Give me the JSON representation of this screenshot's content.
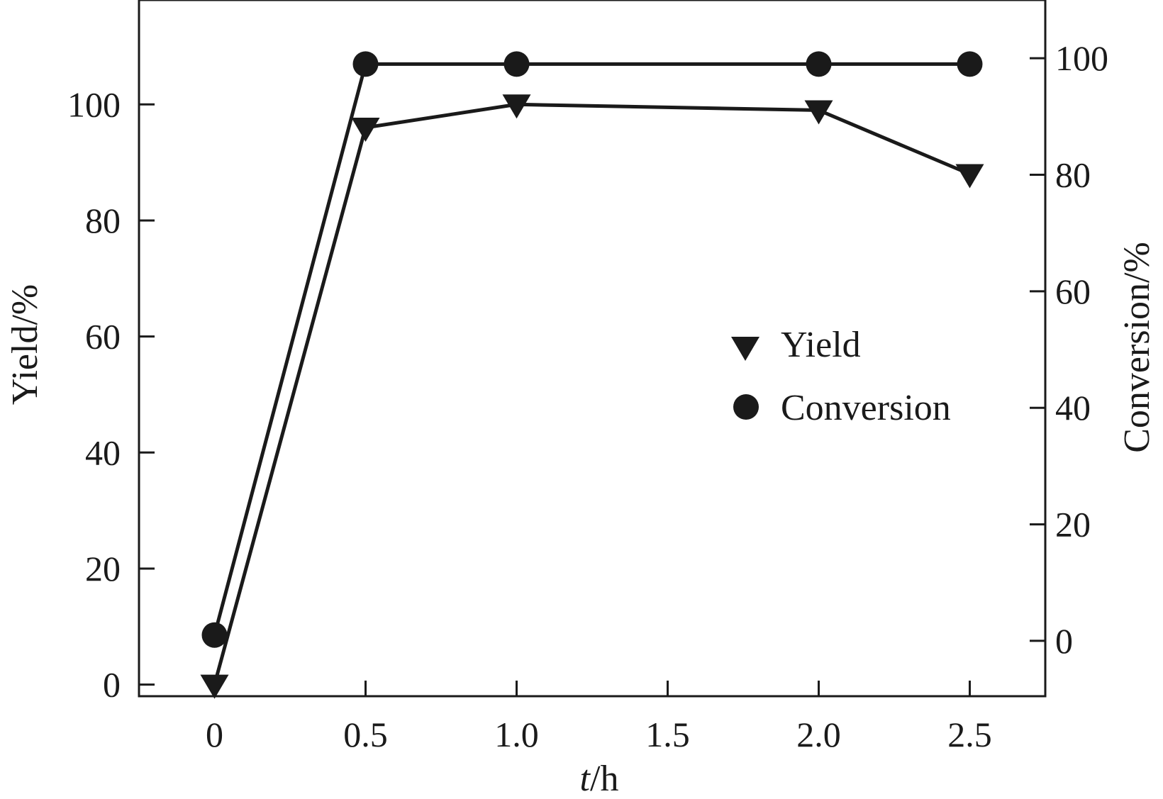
{
  "chart_data": {
    "type": "line",
    "x": [
      0,
      0.5,
      1.0,
      2.0,
      2.5
    ],
    "xlabel_italic": "t",
    "xlabel_rest": "/h",
    "ylabel": "Yield/%",
    "y2label": "Conversion/%",
    "xlim": [
      -0.25,
      2.75
    ],
    "ylim": [
      -2,
      118
    ],
    "y2lim": [
      -9.5,
      110
    ],
    "xticks": [
      0,
      0.5,
      1.0,
      1.5,
      2.0,
      2.5
    ],
    "xtick_labels": [
      "0",
      "0.5",
      "1.0",
      "1.5",
      "2.0",
      "2.5"
    ],
    "yticks": [
      0,
      20,
      40,
      60,
      80,
      100
    ],
    "ytick_labels": [
      "0",
      "20",
      "40",
      "60",
      "80",
      "100"
    ],
    "y2ticks": [
      0,
      20,
      40,
      60,
      80,
      100
    ],
    "y2tick_labels": [
      "0",
      "20",
      "40",
      "60",
      "80",
      "100"
    ],
    "series": [
      {
        "name": "Yield",
        "axis": "left",
        "marker": "triangle-down",
        "values": [
          0,
          96,
          100,
          99,
          88
        ]
      },
      {
        "name": "Conversion",
        "axis": "right",
        "marker": "circle",
        "values": [
          1,
          99,
          99,
          99,
          99
        ]
      }
    ],
    "legend_placement": "center-right",
    "grid": false,
    "colors": {
      "line": "#1a1a1a",
      "marker": "#1a1a1a",
      "background": "#ffffff"
    }
  }
}
